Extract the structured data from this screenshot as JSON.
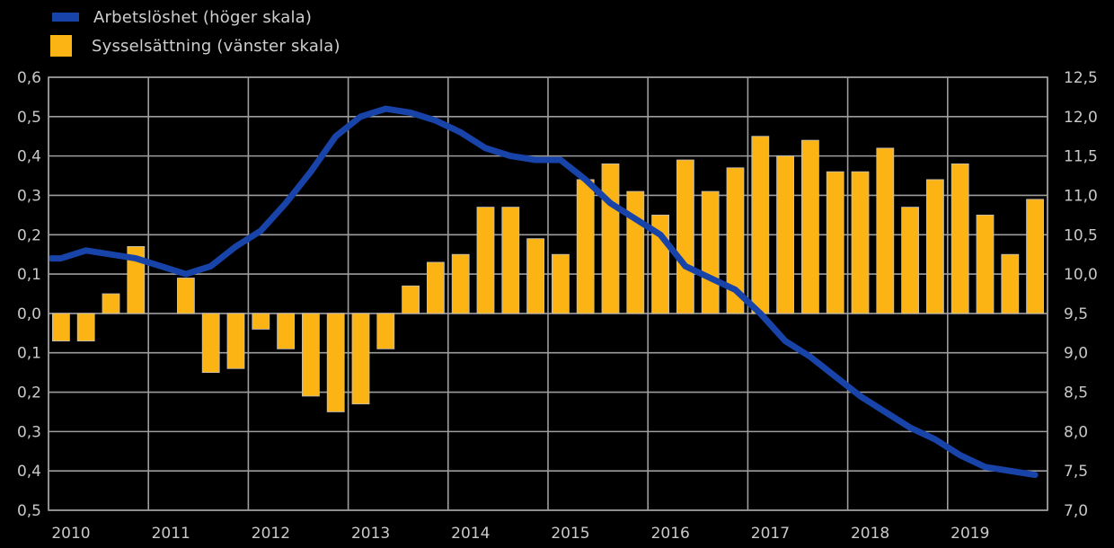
{
  "legend": {
    "items": [
      {
        "label": "Arbetslöshet (höger skala)",
        "swatch_color": "#1843A8",
        "swatch_type": "line"
      },
      {
        "label": "Sysselsättning (vänster skala)",
        "swatch_color": "#FCB415",
        "swatch_type": "bar"
      }
    ]
  },
  "colors": {
    "background": "#000000",
    "grid": "#9D9D9D",
    "tick_text": "#C9C9C9",
    "bar": "#FCB415",
    "bar_stroke": "#BFBFBF",
    "line": "#1843A8"
  },
  "chart_data": {
    "type": "combo",
    "subtypes": [
      "bar",
      "line"
    ],
    "title": "",
    "grid": true,
    "legend_position": "top-left",
    "background": "#000000",
    "x_year_labels": [
      "2010",
      "2011",
      "2012",
      "2013",
      "2014",
      "2015",
      "2016",
      "2017",
      "2018",
      "2019"
    ],
    "categories": [
      "2010Q1",
      "2010Q2",
      "2010Q3",
      "2010Q4",
      "2011Q1",
      "2011Q2",
      "2011Q3",
      "2011Q4",
      "2012Q1",
      "2012Q2",
      "2012Q3",
      "2012Q4",
      "2013Q1",
      "2013Q2",
      "2013Q3",
      "2013Q4",
      "2014Q1",
      "2014Q2",
      "2014Q3",
      "2014Q4",
      "2015Q1",
      "2015Q2",
      "2015Q3",
      "2015Q4",
      "2016Q1",
      "2016Q2",
      "2016Q3",
      "2016Q4",
      "2017Q1",
      "2017Q2",
      "2017Q3",
      "2017Q4",
      "2018Q1",
      "2018Q2",
      "2018Q3",
      "2018Q4",
      "2019Q1",
      "2019Q2",
      "2019Q3",
      "2019Q4"
    ],
    "series": [
      {
        "name": "Sysselsättning (vänster skala)",
        "type": "bar",
        "axis": "left",
        "color": "#FCB415",
        "values": [
          -0.07,
          -0.07,
          0.05,
          0.17,
          0.0,
          0.09,
          -0.15,
          -0.14,
          -0.04,
          -0.09,
          -0.21,
          -0.25,
          -0.23,
          -0.09,
          0.07,
          0.13,
          0.15,
          0.27,
          0.27,
          0.19,
          0.15,
          0.34,
          0.38,
          0.31,
          0.25,
          0.39,
          0.31,
          0.37,
          0.45,
          0.4,
          0.44,
          0.36,
          0.36,
          0.42,
          0.27,
          0.34,
          0.38,
          0.25,
          0.15,
          0.29
        ]
      },
      {
        "name": "Arbetslöshet (höger skala)",
        "type": "line",
        "axis": "right",
        "color": "#1843A8",
        "values": [
          10.2,
          10.3,
          10.25,
          10.2,
          10.1,
          10.0,
          10.1,
          10.35,
          10.55,
          10.9,
          11.3,
          11.75,
          12.0,
          12.1,
          12.05,
          11.95,
          11.8,
          11.6,
          11.5,
          11.45,
          11.45,
          11.2,
          10.9,
          10.7,
          10.5,
          10.1,
          9.95,
          9.8,
          9.5,
          9.15,
          8.95,
          8.7,
          8.45,
          8.25,
          8.05,
          7.9,
          7.7,
          7.55,
          7.5,
          7.45
        ]
      }
    ],
    "left_axis": {
      "min": -0.5,
      "max": 0.6,
      "step": 0.1,
      "tick_labels": [
        "0,6",
        "0,5",
        "0,4",
        "0,3",
        "0,2",
        "0,1",
        "0,0",
        "0,1",
        "0,2",
        "0,3",
        "0,4",
        "0,5"
      ]
    },
    "right_axis": {
      "min": 7.0,
      "max": 12.5,
      "step": 0.5,
      "tick_labels": [
        "12,5",
        "12,0",
        "11,5",
        "11,0",
        "10,5",
        "10,0",
        "9,5",
        "9,0",
        "8,5",
        "8,0",
        "7,5",
        "7,0"
      ]
    }
  }
}
